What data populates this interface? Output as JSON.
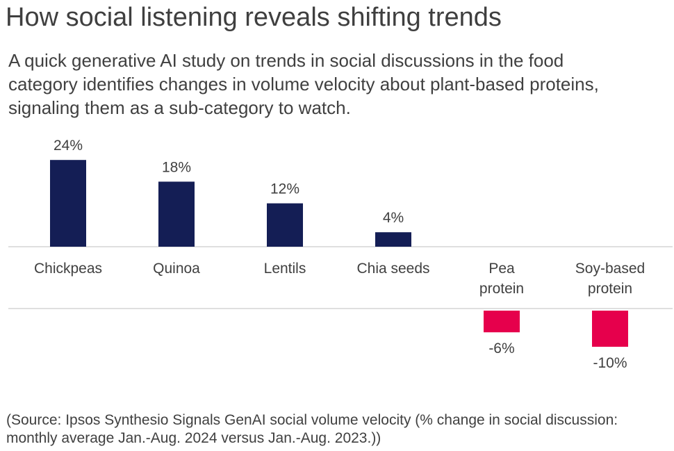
{
  "title": "How social listening reveals shifting trends",
  "subtitle": "A quick generative AI study on trends in social discussions in the food category identifies changes in volume velocity about plant-based proteins, signaling them as a sub-category to watch.",
  "source": "(Source: Ipsos Synthesio Signals GenAI social volume velocity (% change in social discussion: monthly average Jan.-Aug. 2024 versus Jan.-Aug. 2023.))",
  "colors": {
    "positive": "#141e55",
    "negative": "#e6004c",
    "axis": "#bfbfbf"
  },
  "chart_data": {
    "type": "bar",
    "categories": [
      [
        "Chickpeas"
      ],
      [
        "Quinoa"
      ],
      [
        "Lentils"
      ],
      [
        "Chia seeds"
      ],
      [
        "Pea",
        "protein"
      ],
      [
        "Soy-based",
        "protein"
      ]
    ],
    "values": [
      24,
      18,
      12,
      4,
      -6,
      -10
    ],
    "value_labels": [
      "24%",
      "18%",
      "12%",
      "4%",
      "-6%",
      "-10%"
    ],
    "value_unit": "%",
    "grid": false,
    "legend": "none"
  }
}
